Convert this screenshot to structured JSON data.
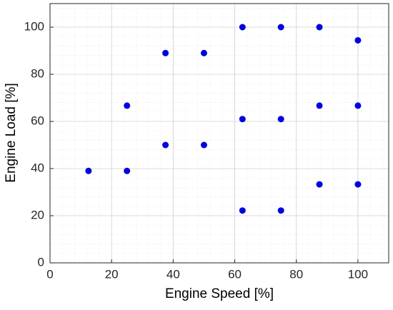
{
  "chart_data": {
    "type": "scatter",
    "xlabel": "Engine Speed [%]",
    "ylabel": "Engine Load [%]",
    "series": [
      {
        "color": "#0000e0",
        "x": [
          12.5,
          25,
          25,
          37.5,
          37.5,
          50,
          50,
          62.5,
          62.5,
          62.5,
          75,
          75,
          75,
          87.5,
          87.5,
          87.5,
          100,
          100,
          100
        ],
        "values": [
          39,
          39,
          66.7,
          50,
          89,
          50,
          89,
          22.2,
          61,
          100,
          22.2,
          61,
          100,
          33.3,
          66.7,
          100,
          33.3,
          66.7,
          94.4
        ]
      }
    ],
    "xlim": [
      0,
      110
    ],
    "xticks": [
      0,
      20,
      40,
      60,
      80,
      100
    ],
    "ylim": [
      0,
      110
    ],
    "yticks": [
      0,
      20,
      40,
      60,
      80,
      100
    ],
    "grid": true,
    "minor_grid": true
  }
}
